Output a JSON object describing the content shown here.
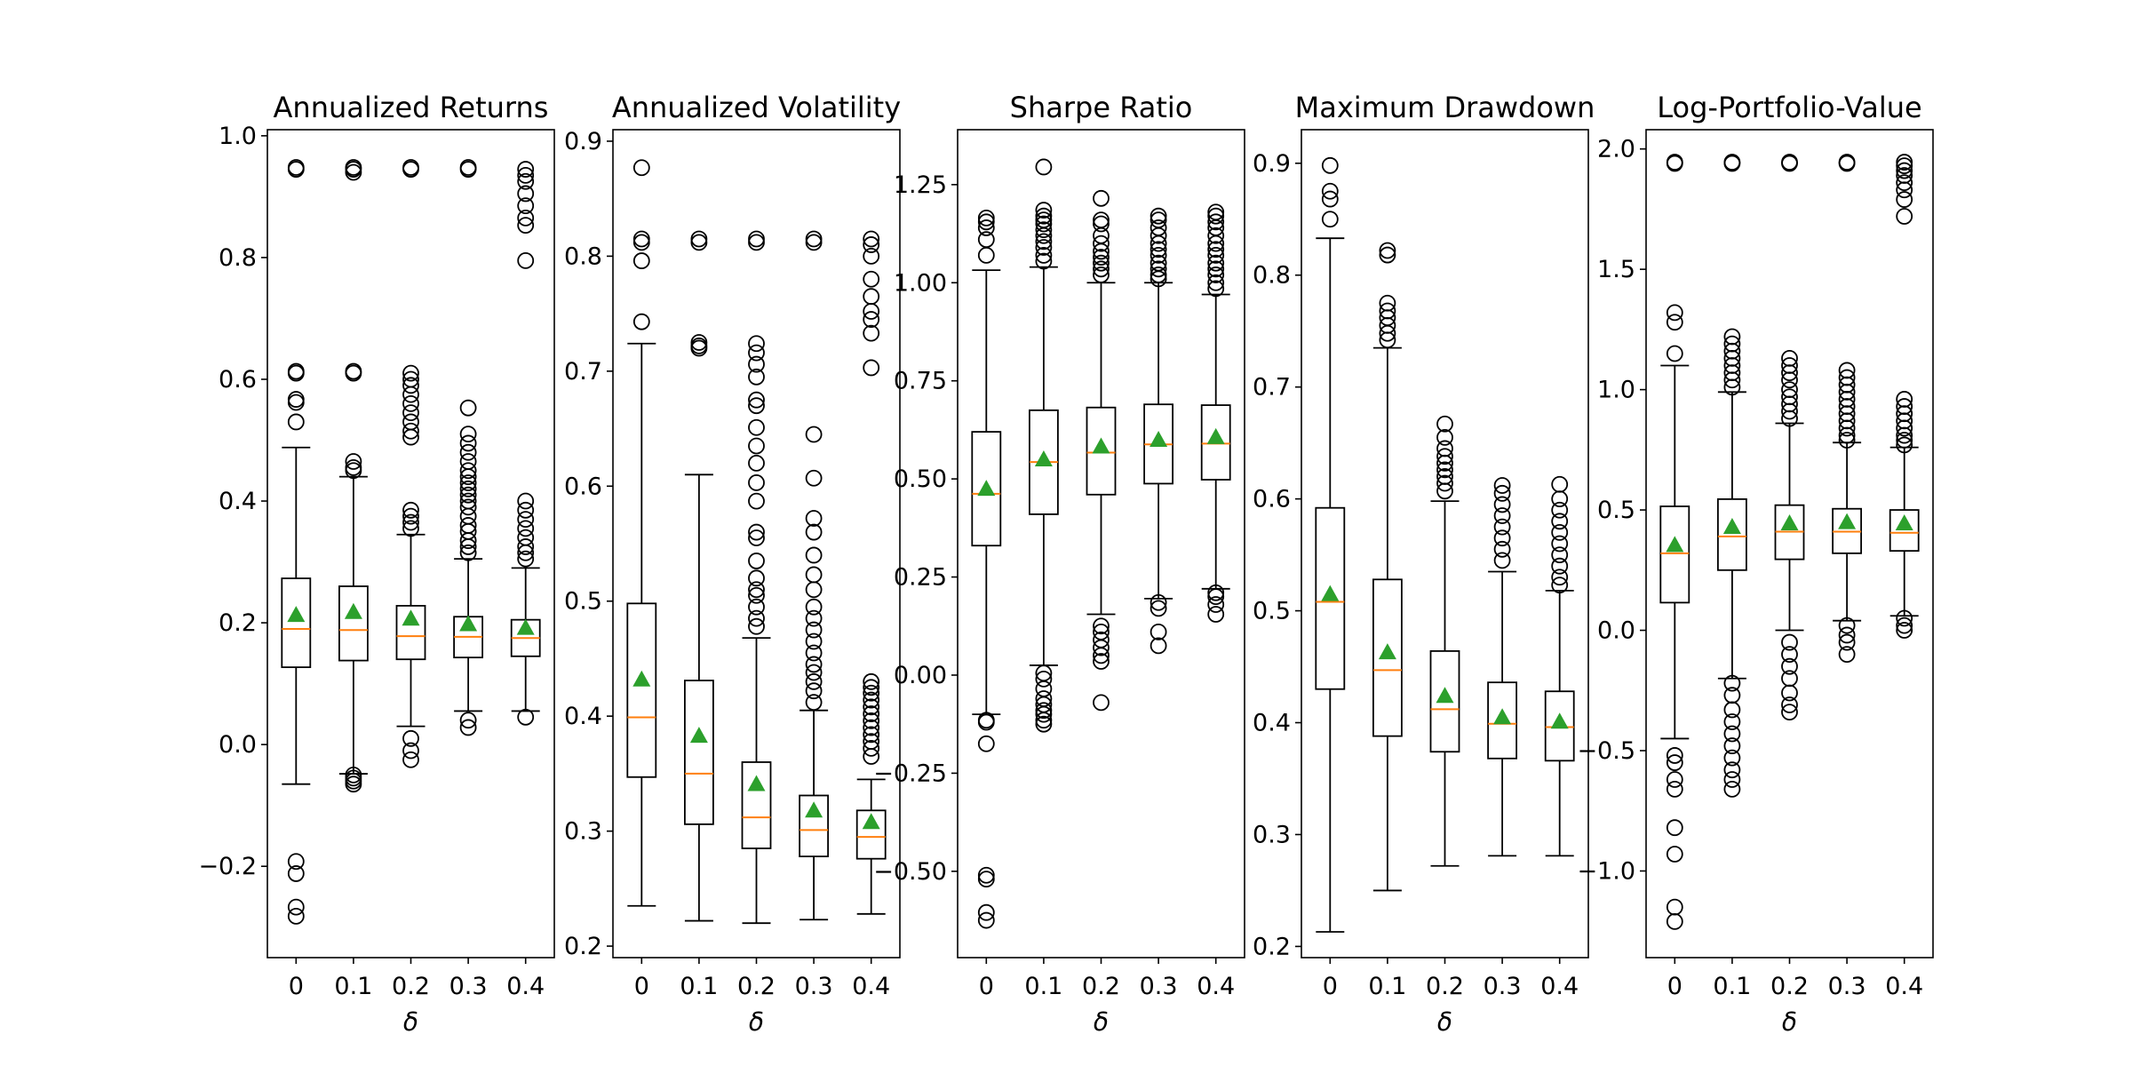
{
  "colors": {
    "axis": "#000000",
    "box": "#000000",
    "median": "#ff7f0e",
    "mean": "#2ca02c",
    "outlier": "#000000"
  },
  "chart_data": [
    {
      "type": "box",
      "title": "Annualized Returns",
      "xlabel": "δ",
      "categories": [
        "0",
        "0.1",
        "0.2",
        "0.3",
        "0.4"
      ],
      "ylim": [
        -0.35,
        1.01
      ],
      "yticks": [
        -0.2,
        0.0,
        0.2,
        0.4,
        0.6,
        0.8,
        1.0
      ],
      "ytick_labels": [
        "−0.2",
        "0.0",
        "0.2",
        "0.4",
        "0.6",
        "0.8",
        "1.0"
      ],
      "boxes": [
        {
          "category": "0",
          "whislo": -0.065,
          "q1": 0.127,
          "med": 0.19,
          "q3": 0.273,
          "whishi": 0.488,
          "mean": 0.213,
          "fliers": [
            0.948,
            0.945,
            0.613,
            0.61,
            0.567,
            0.562,
            0.53,
            -0.192,
            -0.212,
            -0.267,
            -0.282
          ]
        },
        {
          "category": "0.1",
          "whislo": -0.048,
          "q1": 0.138,
          "med": 0.188,
          "q3": 0.26,
          "whishi": 0.44,
          "mean": 0.218,
          "fliers": [
            0.948,
            0.945,
            0.94,
            0.613,
            0.61,
            0.465,
            0.455,
            0.45,
            -0.05,
            -0.055,
            -0.06,
            -0.065
          ]
        },
        {
          "category": "0.2",
          "whislo": 0.03,
          "q1": 0.14,
          "med": 0.178,
          "q3": 0.228,
          "whishi": 0.345,
          "mean": 0.207,
          "fliers": [
            0.948,
            0.945,
            0.61,
            0.6,
            0.59,
            0.575,
            0.56,
            0.545,
            0.53,
            0.515,
            0.505,
            0.385,
            0.375,
            0.365,
            0.355,
            0.01,
            -0.01,
            -0.025
          ]
        },
        {
          "category": "0.3",
          "whislo": 0.055,
          "q1": 0.143,
          "med": 0.177,
          "q3": 0.21,
          "whishi": 0.305,
          "mean": 0.198,
          "fliers": [
            0.948,
            0.945,
            0.553,
            0.51,
            0.495,
            0.48,
            0.465,
            0.45,
            0.44,
            0.43,
            0.42,
            0.41,
            0.4,
            0.39,
            0.375,
            0.36,
            0.35,
            0.335,
            0.325,
            0.315,
            0.04,
            0.028
          ]
        },
        {
          "category": "0.4",
          "whislo": 0.055,
          "q1": 0.145,
          "med": 0.175,
          "q3": 0.205,
          "whishi": 0.29,
          "mean": 0.192,
          "fliers": [
            0.945,
            0.935,
            0.925,
            0.905,
            0.885,
            0.865,
            0.853,
            0.795,
            0.4,
            0.385,
            0.37,
            0.355,
            0.34,
            0.325,
            0.315,
            0.305,
            0.045
          ]
        }
      ]
    },
    {
      "type": "box",
      "title": "Annualized Volatility",
      "xlabel": "δ",
      "categories": [
        "0",
        "0.1",
        "0.2",
        "0.3",
        "0.4"
      ],
      "ylim": [
        0.19,
        0.91
      ],
      "yticks": [
        0.2,
        0.3,
        0.4,
        0.5,
        0.6,
        0.7,
        0.8,
        0.9
      ],
      "ytick_labels": [
        "0.2",
        "0.3",
        "0.4",
        "0.5",
        "0.6",
        "0.7",
        "0.8",
        "0.9"
      ],
      "boxes": [
        {
          "category": "0",
          "whislo": 0.235,
          "q1": 0.347,
          "med": 0.399,
          "q3": 0.498,
          "whishi": 0.724,
          "mean": 0.432,
          "fliers": [
            0.877,
            0.815,
            0.812,
            0.796,
            0.743
          ]
        },
        {
          "category": "0.1",
          "whislo": 0.222,
          "q1": 0.306,
          "med": 0.35,
          "q3": 0.431,
          "whishi": 0.61,
          "mean": 0.383,
          "fliers": [
            0.815,
            0.812,
            0.725,
            0.722,
            0.72
          ]
        },
        {
          "category": "0.2",
          "whislo": 0.22,
          "q1": 0.285,
          "med": 0.312,
          "q3": 0.36,
          "whishi": 0.468,
          "mean": 0.341,
          "fliers": [
            0.815,
            0.812,
            0.724,
            0.716,
            0.706,
            0.695,
            0.675,
            0.67,
            0.651,
            0.635,
            0.62,
            0.603,
            0.587,
            0.56,
            0.555,
            0.535,
            0.52,
            0.51,
            0.505,
            0.495,
            0.485,
            0.478
          ]
        },
        {
          "category": "0.3",
          "whislo": 0.223,
          "q1": 0.278,
          "med": 0.301,
          "q3": 0.331,
          "whishi": 0.405,
          "mean": 0.318,
          "fliers": [
            0.815,
            0.812,
            0.645,
            0.607,
            0.572,
            0.56,
            0.54,
            0.523,
            0.51,
            0.495,
            0.485,
            0.475,
            0.465,
            0.455,
            0.445,
            0.438,
            0.43,
            0.422,
            0.412
          ]
        },
        {
          "category": "0.4",
          "whislo": 0.228,
          "q1": 0.276,
          "med": 0.295,
          "q3": 0.318,
          "whishi": 0.345,
          "mean": 0.308,
          "fliers": [
            0.815,
            0.81,
            0.8,
            0.78,
            0.765,
            0.752,
            0.745,
            0.733,
            0.703,
            0.43,
            0.425,
            0.42,
            0.414,
            0.408,
            0.402,
            0.396,
            0.39,
            0.384,
            0.378,
            0.372,
            0.365
          ]
        }
      ]
    },
    {
      "type": "box",
      "title": "Sharpe Ratio",
      "xlabel": "δ",
      "categories": [
        "0",
        "0.1",
        "0.2",
        "0.3",
        "0.4"
      ],
      "ylim": [
        -0.72,
        1.39
      ],
      "yticks": [
        -0.5,
        -0.25,
        0.0,
        0.25,
        0.5,
        0.75,
        1.0,
        1.25
      ],
      "ytick_labels": [
        "−0.50",
        "−0.25",
        "0.00",
        "0.25",
        "0.50",
        "0.75",
        "1.00",
        "1.25"
      ],
      "boxes": [
        {
          "category": "0",
          "whislo": -0.1,
          "q1": 0.33,
          "med": 0.462,
          "q3": 0.62,
          "whishi": 1.032,
          "mean": 0.475,
          "fliers": [
            1.165,
            1.155,
            1.14,
            1.11,
            1.07,
            -0.115,
            -0.12,
            -0.175,
            -0.51,
            -0.52,
            -0.605,
            -0.625
          ]
        },
        {
          "category": "0.1",
          "whislo": 0.025,
          "q1": 0.41,
          "med": 0.543,
          "q3": 0.675,
          "whishi": 1.04,
          "mean": 0.55,
          "fliers": [
            1.295,
            1.185,
            1.17,
            1.16,
            1.15,
            1.135,
            1.12,
            1.105,
            1.09,
            1.07,
            1.055,
            0.005,
            -0.01,
            -0.035,
            -0.06,
            -0.075,
            -0.09,
            -0.1,
            -0.115,
            -0.125
          ]
        },
        {
          "category": "0.2",
          "whislo": 0.155,
          "q1": 0.46,
          "med": 0.567,
          "q3": 0.682,
          "whishi": 1.0,
          "mean": 0.583,
          "fliers": [
            1.215,
            1.16,
            1.15,
            1.12,
            1.1,
            1.08,
            1.065,
            1.05,
            1.035,
            1.02,
            0.125,
            0.11,
            0.09,
            0.07,
            0.05,
            0.035,
            -0.07
          ]
        },
        {
          "category": "0.3",
          "whislo": 0.195,
          "q1": 0.488,
          "med": 0.588,
          "q3": 0.69,
          "whishi": 1.0,
          "mean": 0.6,
          "fliers": [
            1.17,
            1.16,
            1.14,
            1.12,
            1.1,
            1.085,
            1.07,
            1.05,
            1.035,
            1.02,
            1.01,
            0.185,
            0.17,
            0.11,
            0.075
          ]
        },
        {
          "category": "0.4",
          "whislo": 0.22,
          "q1": 0.498,
          "med": 0.59,
          "q3": 0.688,
          "whishi": 0.97,
          "mean": 0.607,
          "fliers": [
            1.18,
            1.17,
            1.155,
            1.14,
            1.12,
            1.1,
            1.085,
            1.07,
            1.05,
            1.035,
            1.02,
            1.0,
            0.985,
            0.21,
            0.2,
            0.18,
            0.155
          ]
        }
      ]
    },
    {
      "type": "box",
      "title": "Maximum Drawdown",
      "xlabel": "δ",
      "categories": [
        "0",
        "0.1",
        "0.2",
        "0.3",
        "0.4"
      ],
      "ylim": [
        0.19,
        0.93
      ],
      "yticks": [
        0.2,
        0.3,
        0.4,
        0.5,
        0.6,
        0.7,
        0.8,
        0.9
      ],
      "ytick_labels": [
        "0.2",
        "0.3",
        "0.4",
        "0.5",
        "0.6",
        "0.7",
        "0.8",
        "0.9"
      ],
      "boxes": [
        {
          "category": "0",
          "whislo": 0.213,
          "q1": 0.43,
          "med": 0.508,
          "q3": 0.592,
          "whishi": 0.833,
          "mean": 0.515,
          "fliers": [
            0.898,
            0.875,
            0.868,
            0.85
          ]
        },
        {
          "category": "0.1",
          "whislo": 0.25,
          "q1": 0.388,
          "med": 0.447,
          "q3": 0.528,
          "whishi": 0.735,
          "mean": 0.463,
          "fliers": [
            0.822,
            0.818,
            0.775,
            0.768,
            0.762,
            0.755,
            0.748,
            0.742
          ]
        },
        {
          "category": "0.2",
          "whislo": 0.272,
          "q1": 0.374,
          "med": 0.412,
          "q3": 0.464,
          "whishi": 0.598,
          "mean": 0.424,
          "fliers": [
            0.667,
            0.655,
            0.645,
            0.638,
            0.632,
            0.626,
            0.62,
            0.614,
            0.607
          ]
        },
        {
          "category": "0.3",
          "whislo": 0.281,
          "q1": 0.368,
          "med": 0.399,
          "q3": 0.436,
          "whishi": 0.535,
          "mean": 0.405,
          "fliers": [
            0.612,
            0.605,
            0.595,
            0.585,
            0.575,
            0.565,
            0.555,
            0.545
          ]
        },
        {
          "category": "0.4",
          "whislo": 0.281,
          "q1": 0.366,
          "med": 0.396,
          "q3": 0.428,
          "whishi": 0.518,
          "mean": 0.401,
          "fliers": [
            0.613,
            0.6,
            0.59,
            0.58,
            0.57,
            0.56,
            0.55,
            0.54,
            0.53,
            0.523
          ]
        }
      ]
    },
    {
      "type": "box",
      "title": "Log-Portfolio-Value",
      "xlabel": "δ",
      "categories": [
        "0",
        "0.1",
        "0.2",
        "0.3",
        "0.4"
      ],
      "ylim": [
        -1.36,
        2.08
      ],
      "yticks": [
        -1.0,
        -0.5,
        0.0,
        0.5,
        1.0,
        1.5,
        2.0
      ],
      "ytick_labels": [
        "−1.0",
        "−0.5",
        "0.0",
        "0.5",
        "1.0",
        "1.5",
        "2.0"
      ],
      "boxes": [
        {
          "category": "0",
          "whislo": -0.45,
          "q1": 0.115,
          "med": 0.32,
          "q3": 0.515,
          "whishi": 1.1,
          "mean": 0.355,
          "fliers": [
            1.945,
            1.94,
            1.32,
            1.28,
            1.15,
            -0.52,
            -0.55,
            -0.62,
            -0.66,
            -0.82,
            -0.93,
            -1.15,
            -1.21
          ]
        },
        {
          "category": "0.1",
          "whislo": -0.2,
          "q1": 0.25,
          "med": 0.39,
          "q3": 0.545,
          "whishi": 0.99,
          "mean": 0.43,
          "fliers": [
            1.945,
            1.94,
            1.22,
            1.19,
            1.16,
            1.13,
            1.1,
            1.07,
            1.04,
            1.01,
            -0.22,
            -0.27,
            -0.33,
            -0.38,
            -0.43,
            -0.48,
            -0.53,
            -0.58,
            -0.62,
            -0.66
          ]
        },
        {
          "category": "0.2",
          "whislo": 0.0,
          "q1": 0.295,
          "med": 0.41,
          "q3": 0.52,
          "whishi": 0.86,
          "mean": 0.445,
          "fliers": [
            1.945,
            1.94,
            1.13,
            1.1,
            1.07,
            1.04,
            1.0,
            0.97,
            0.94,
            0.91,
            0.88,
            -0.05,
            -0.1,
            -0.15,
            -0.2,
            -0.26,
            -0.31,
            -0.34
          ]
        },
        {
          "category": "0.3",
          "whislo": 0.04,
          "q1": 0.32,
          "med": 0.41,
          "q3": 0.505,
          "whishi": 0.78,
          "mean": 0.45,
          "fliers": [
            1.945,
            1.94,
            1.08,
            1.05,
            1.02,
            0.99,
            0.96,
            0.93,
            0.9,
            0.87,
            0.84,
            0.81,
            0.79,
            0.02,
            -0.02,
            -0.05,
            -0.1
          ]
        },
        {
          "category": "0.4",
          "whislo": 0.06,
          "q1": 0.33,
          "med": 0.405,
          "q3": 0.5,
          "whishi": 0.76,
          "mean": 0.445,
          "fliers": [
            1.945,
            1.93,
            1.91,
            1.89,
            1.86,
            1.83,
            1.79,
            1.72,
            0.96,
            0.93,
            0.9,
            0.87,
            0.84,
            0.81,
            0.79,
            0.77,
            0.05,
            0.02,
            0.0
          ]
        }
      ]
    }
  ]
}
